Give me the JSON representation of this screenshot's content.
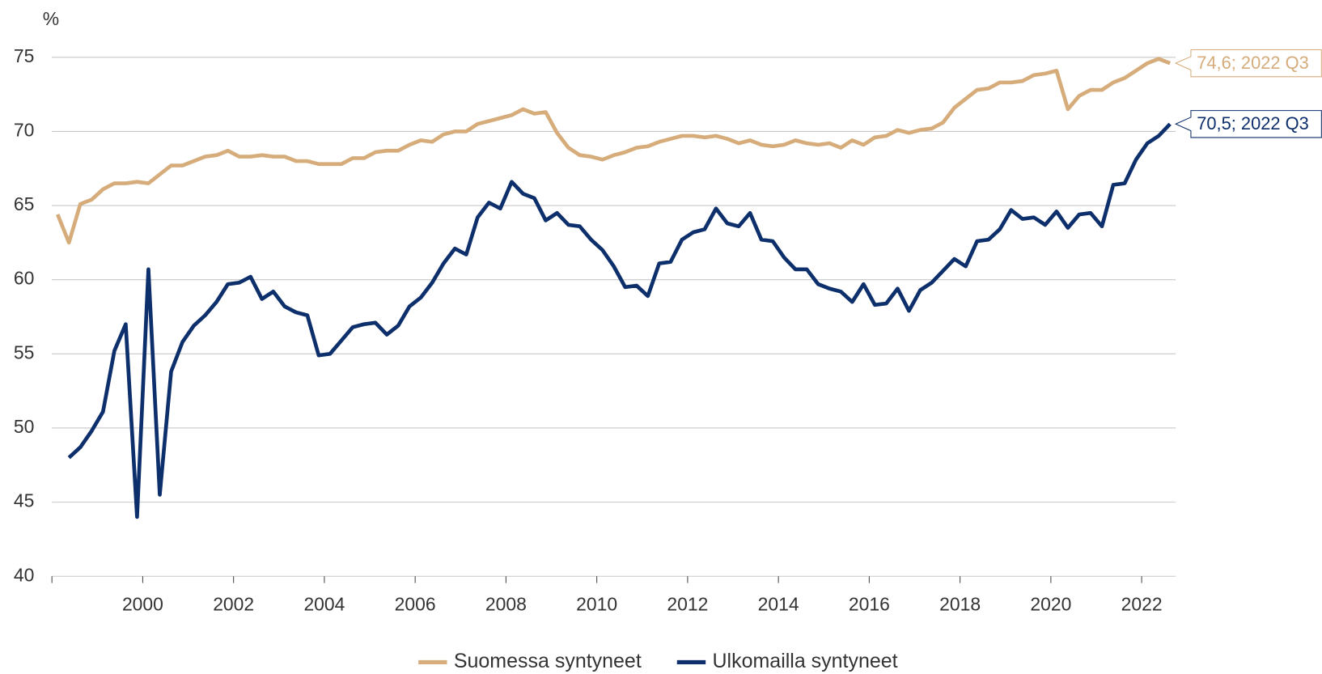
{
  "chart_data": {
    "type": "line",
    "y_label": "%",
    "xlim": [
      1998,
      2022.75
    ],
    "xticks": [
      2000,
      2002,
      2004,
      2006,
      2008,
      2010,
      2012,
      2014,
      2016,
      2018,
      2020,
      2022
    ],
    "ylim": [
      40,
      75
    ],
    "yticks": [
      40,
      45,
      50,
      55,
      60,
      65,
      70,
      75
    ],
    "grid": true,
    "legend": "bottom",
    "x": [
      1998.125,
      1998.375,
      1998.625,
      1998.875,
      1999.125,
      1999.375,
      1999.625,
      1999.875,
      2000.125,
      2000.375,
      2000.625,
      2000.875,
      2001.125,
      2001.375,
      2001.625,
      2001.875,
      2002.125,
      2002.375,
      2002.625,
      2002.875,
      2003.125,
      2003.375,
      2003.625,
      2003.875,
      2004.125,
      2004.375,
      2004.625,
      2004.875,
      2005.125,
      2005.375,
      2005.625,
      2005.875,
      2006.125,
      2006.375,
      2006.625,
      2006.875,
      2007.125,
      2007.375,
      2007.625,
      2007.875,
      2008.125,
      2008.375,
      2008.625,
      2008.875,
      2009.125,
      2009.375,
      2009.625,
      2009.875,
      2010.125,
      2010.375,
      2010.625,
      2010.875,
      2011.125,
      2011.375,
      2011.625,
      2011.875,
      2012.125,
      2012.375,
      2012.625,
      2012.875,
      2013.125,
      2013.375,
      2013.625,
      2013.875,
      2014.125,
      2014.375,
      2014.625,
      2014.875,
      2015.125,
      2015.375,
      2015.625,
      2015.875,
      2016.125,
      2016.375,
      2016.625,
      2016.875,
      2017.125,
      2017.375,
      2017.625,
      2017.875,
      2018.125,
      2018.375,
      2018.625,
      2018.875,
      2019.125,
      2019.375,
      2019.625,
      2019.875,
      2020.125,
      2020.375,
      2020.625,
      2020.875,
      2021.125,
      2021.375,
      2021.625,
      2021.875,
      2022.125,
      2022.375,
      2022.625
    ],
    "series": [
      {
        "name": "Suomessa syntyneet",
        "color": "#d6ac7b",
        "end_label": "74,6; 2022 Q3",
        "values": [
          64.4,
          62.5,
          65.1,
          65.4,
          66.1,
          66.5,
          66.5,
          66.6,
          66.5,
          67.1,
          67.7,
          67.7,
          68.0,
          68.3,
          68.4,
          68.7,
          68.3,
          68.3,
          68.4,
          68.3,
          68.3,
          68.0,
          68.0,
          67.8,
          67.8,
          67.8,
          68.2,
          68.2,
          68.6,
          68.7,
          68.7,
          69.1,
          69.4,
          69.3,
          69.8,
          70.0,
          70.0,
          70.5,
          70.7,
          70.9,
          71.1,
          71.5,
          71.2,
          71.3,
          69.9,
          68.9,
          68.4,
          68.3,
          68.1,
          68.4,
          68.6,
          68.9,
          69.0,
          69.3,
          69.5,
          69.7,
          69.7,
          69.6,
          69.7,
          69.5,
          69.2,
          69.4,
          69.1,
          69.0,
          69.1,
          69.4,
          69.2,
          69.1,
          69.2,
          68.9,
          69.4,
          69.1,
          69.6,
          69.7,
          70.1,
          69.9,
          70.1,
          70.2,
          70.6,
          71.6,
          72.2,
          72.8,
          72.9,
          73.3,
          73.3,
          73.4,
          73.8,
          73.9,
          74.1,
          71.5,
          72.4,
          72.8,
          72.8,
          73.3,
          73.6,
          74.1,
          74.6,
          74.9,
          74.6
        ]
      },
      {
        "name": "Ulkomailla syntyneet",
        "color": "#0d2f6b",
        "end_label": "70,5; 2022 Q3",
        "values": [
          null,
          48.0,
          48.7,
          49.8,
          51.1,
          55.2,
          57.0,
          44.0,
          60.7,
          45.5,
          53.8,
          55.8,
          56.9,
          57.6,
          58.5,
          59.7,
          59.8,
          60.2,
          58.7,
          59.2,
          58.2,
          57.8,
          57.6,
          54.9,
          55.0,
          55.9,
          56.8,
          57.0,
          57.1,
          56.3,
          56.9,
          58.2,
          58.8,
          59.8,
          61.1,
          62.1,
          61.7,
          64.2,
          65.2,
          64.8,
          66.6,
          65.8,
          65.5,
          64.0,
          64.5,
          63.7,
          63.6,
          62.7,
          62.0,
          60.9,
          59.5,
          59.6,
          58.9,
          61.1,
          61.2,
          62.7,
          63.2,
          63.4,
          64.8,
          63.8,
          63.6,
          64.5,
          62.7,
          62.6,
          61.5,
          60.7,
          60.7,
          59.7,
          59.4,
          59.2,
          58.5,
          59.7,
          58.3,
          58.4,
          59.4,
          57.9,
          59.3,
          59.8,
          60.6,
          61.4,
          60.9,
          62.6,
          62.7,
          63.4,
          64.7,
          64.1,
          64.2,
          63.7,
          64.6,
          63.5,
          64.4,
          64.5,
          63.6,
          66.4,
          66.5,
          68.1,
          69.2,
          69.7,
          70.5
        ]
      }
    ]
  }
}
